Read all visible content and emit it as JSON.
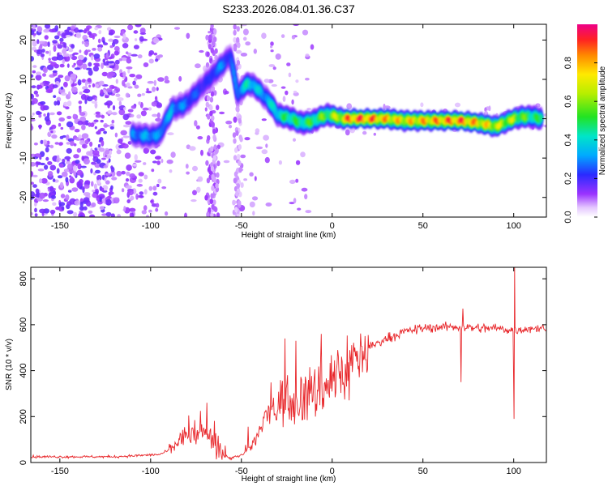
{
  "title": "S233.2026.084.01.36.C37",
  "chart_data": [
    {
      "type": "heatmap",
      "name": "spectrogram",
      "xlabel": "Height of straight line (km)",
      "ylabel": "Frequency (Hz)",
      "xlim": [
        -166,
        118
      ],
      "ylim": [
        -25,
        24
      ],
      "xticks": [
        -150,
        -100,
        -50,
        0,
        50,
        100
      ],
      "yticks": [
        -20,
        -10,
        0,
        10,
        20
      ],
      "colorbar": {
        "label": "Normalized spectral amplitude",
        "range": [
          0.0,
          1.0
        ],
        "ticks": [
          0.0,
          0.2,
          0.4,
          0.6,
          0.8
        ]
      },
      "ridge": {
        "x": [
          -110,
          -100,
          -95,
          -92,
          -88,
          -84,
          -80,
          -76,
          -72,
          -68,
          -64,
          -60,
          -56,
          -52,
          -49,
          -46,
          -42,
          -38,
          -34,
          -30,
          -26,
          -22,
          -18,
          -14,
          -10,
          -6,
          -2,
          2,
          6,
          10,
          20,
          30,
          40,
          50,
          60,
          70,
          80,
          85,
          90,
          95,
          100,
          105,
          110,
          115
        ],
        "y": [
          -4,
          -4.5,
          -4,
          -1,
          2.5,
          3,
          4,
          6,
          8,
          10,
          12,
          14,
          16,
          6,
          8,
          9,
          8,
          6,
          4,
          1,
          0.5,
          0,
          -1,
          -1,
          -0.5,
          0.5,
          1,
          0.5,
          0,
          0,
          0,
          0,
          -0.5,
          -0.5,
          -0.5,
          -0.5,
          -1,
          -1.5,
          -2,
          -1,
          0,
          0.5,
          0.5,
          0
        ],
        "amp": [
          0.3,
          0.35,
          0.3,
          0.35,
          0.35,
          0.3,
          0.3,
          0.25,
          0.25,
          0.2,
          0.3,
          0.3,
          0.25,
          0.3,
          0.4,
          0.45,
          0.4,
          0.35,
          0.4,
          0.45,
          0.5,
          0.55,
          0.5,
          0.55,
          0.55,
          0.6,
          0.6,
          0.7,
          0.8,
          0.95,
          0.95,
          0.85,
          0.8,
          0.85,
          0.9,
          0.95,
          0.85,
          0.8,
          0.75,
          0.7,
          0.7,
          0.6,
          0.55,
          0.5
        ]
      }
    },
    {
      "type": "line",
      "name": "snr",
      "xlabel": "Height of straight line (km)",
      "ylabel": "SNR (10 * v/v)",
      "xlim": [
        -166,
        118
      ],
      "ylim": [
        0,
        850
      ],
      "xticks": [
        -150,
        -100,
        -50,
        0,
        50,
        100
      ],
      "yticks": [
        0,
        200,
        400,
        600,
        800
      ],
      "color": "#e8262a",
      "profile": {
        "x": [
          -166,
          -120,
          -95,
          -88,
          -84,
          -80,
          -76,
          -72,
          -68,
          -64,
          -60,
          -56,
          -52,
          -48,
          -44,
          -40,
          -36,
          -30,
          -20,
          -10,
          0,
          10,
          20,
          30,
          40,
          50,
          60,
          70,
          80,
          90,
          100,
          110,
          118
        ],
        "y": [
          25,
          25,
          35,
          60,
          100,
          120,
          110,
          130,
          120,
          60,
          30,
          20,
          25,
          40,
          80,
          130,
          200,
          260,
          280,
          300,
          360,
          420,
          500,
          540,
          570,
          585,
          590,
          590,
          585,
          585,
          575,
          585,
          585
        ]
      },
      "spikes": [
        {
          "x": -79,
          "y": 205
        },
        {
          "x": -69,
          "y": 260
        },
        {
          "x": -26,
          "y": 540
        },
        {
          "x": -20,
          "y": 530
        },
        {
          "x": -6,
          "y": 560
        },
        {
          "x": 72,
          "y": 670
        },
        {
          "x": 71,
          "y": 350
        },
        {
          "x": 100.5,
          "y": 850
        },
        {
          "x": 100.2,
          "y": 190
        }
      ]
    }
  ]
}
